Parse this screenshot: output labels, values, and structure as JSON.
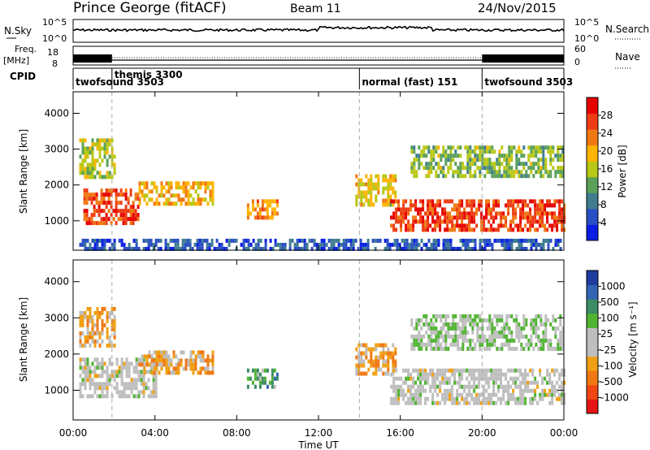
{
  "header": {
    "station": "Prince George (fitACF)",
    "beam": "Beam 11",
    "date": "24/Nov/2015"
  },
  "noise_panel": {
    "left_label": "N.Sky",
    "right_label": "N.Search",
    "ytick_top": "10^5",
    "ytick_bottom": "10^0"
  },
  "freq_panel": {
    "left_label_1": "Freq.",
    "left_label_2": "[MHz]",
    "ytick_top": "18",
    "ytick_bottom": "8",
    "right_label": "Nave",
    "rtick_top": "60",
    "rtick_bottom": "0"
  },
  "cpid_panel": {
    "label": "CPID",
    "programs": [
      {
        "name": "twofsound 3503",
        "start_hour": 0.0
      },
      {
        "name": "themis 3300",
        "start_hour": 1.9
      },
      {
        "name": "normal (fast) 151",
        "start_hour": 14.0
      },
      {
        "name": "twofsound 3503",
        "start_hour": 20.0
      }
    ]
  },
  "x_axis": {
    "label": "Time UT",
    "ticks": [
      "00:00",
      "04:00",
      "08:00",
      "12:00",
      "16:00",
      "20:00",
      "00:00"
    ],
    "range_hours": [
      0,
      24
    ]
  },
  "power_panel": {
    "ylabel": "Slant Range [km]",
    "yticks": [
      "1000",
      "2000",
      "3000",
      "4000"
    ],
    "colorbar_label": "Power [dB]",
    "colorbar_ticks": [
      "4",
      "8",
      "12",
      "16",
      "20",
      "24",
      "28"
    ],
    "colors": [
      "#0a1ee6",
      "#2a4fc4",
      "#3f7d8f",
      "#5aa058",
      "#b8c814",
      "#ffb400",
      "#f07812",
      "#ee3c14",
      "#e60000"
    ]
  },
  "velocity_panel": {
    "ylabel": "Slant Range [km]",
    "yticks": [
      "1000",
      "2000",
      "3000",
      "4000"
    ],
    "colorbar_label": "Velocity [m s⁻¹]",
    "colorbar_ticks": [
      "1000",
      "500",
      "100",
      "25",
      "-25",
      "-100",
      "-500",
      "-1000"
    ],
    "colors": [
      "#1e3ca0",
      "#3264b4",
      "#3c8c64",
      "#50b432",
      "#bebebe",
      "#bebebe",
      "#f0a014",
      "#f07814",
      "#f04614",
      "#e61414"
    ]
  },
  "chart_data": [
    {
      "type": "heatmap",
      "title": "Power",
      "xlabel": "Time UT",
      "ylabel": "Slant Range [km]",
      "xlim": [
        0,
        24
      ],
      "ylim": [
        180,
        4600
      ],
      "zlabel": "Power [dB]",
      "zlim": [
        0,
        32
      ],
      "regions": [
        {
          "t0": 0.3,
          "t1": 2.0,
          "r0": 2200,
          "r1": 3300,
          "z": 16
        },
        {
          "t0": 0.5,
          "t1": 3.2,
          "r0": 900,
          "r1": 1900,
          "z": 26
        },
        {
          "t0": 3.2,
          "t1": 6.8,
          "r0": 1500,
          "r1": 2100,
          "z": 20
        },
        {
          "t0": 8.5,
          "t1": 10.0,
          "r0": 1100,
          "r1": 1600,
          "z": 22
        },
        {
          "t0": 13.8,
          "t1": 15.8,
          "r0": 1500,
          "r1": 2300,
          "z": 18
        },
        {
          "t0": 15.5,
          "t1": 24.0,
          "r0": 700,
          "r1": 1600,
          "z": 27
        },
        {
          "t0": 16.5,
          "t1": 24.0,
          "r0": 2200,
          "r1": 3100,
          "z": 14
        },
        {
          "t0": 0.3,
          "t1": 24.0,
          "r0": 200,
          "r1": 500,
          "z": 6
        }
      ]
    },
    {
      "type": "heatmap",
      "title": "Velocity",
      "xlabel": "Time UT",
      "ylabel": "Slant Range [km]",
      "xlim": [
        0,
        24
      ],
      "ylim": [
        180,
        4600
      ],
      "zlabel": "Velocity [m s⁻¹]",
      "zlim": [
        -1000,
        1000
      ],
      "regions": [
        {
          "t0": 0.3,
          "t1": 2.0,
          "r0": 2200,
          "r1": 3300,
          "z": -300
        },
        {
          "t0": 0.3,
          "t1": 4.0,
          "r0": 800,
          "r1": 1900,
          "z": 0
        },
        {
          "t0": 3.2,
          "t1": 6.8,
          "r0": 1500,
          "r1": 2100,
          "z": -300
        },
        {
          "t0": 8.5,
          "t1": 10.0,
          "r0": 1100,
          "r1": 1600,
          "z": 400
        },
        {
          "t0": 13.8,
          "t1": 15.8,
          "r0": 1500,
          "r1": 2300,
          "z": -300
        },
        {
          "t0": 15.5,
          "t1": 24.0,
          "r0": 700,
          "r1": 1600,
          "z": 0
        },
        {
          "t0": 16.5,
          "t1": 24.0,
          "r0": 2200,
          "r1": 3100,
          "z": 150
        }
      ]
    }
  ]
}
